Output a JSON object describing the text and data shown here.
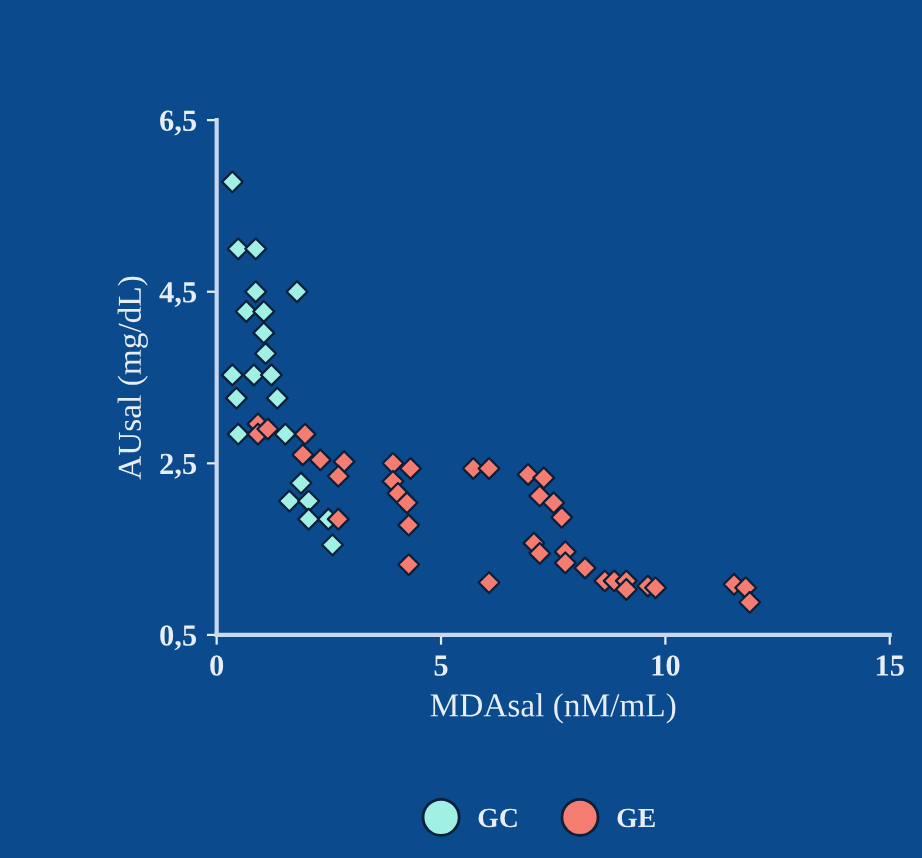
{
  "chart_data": {
    "type": "scatter",
    "xlabel": "MDAsal (nM/mL)",
    "ylabel": "AUsal (mg/dL)",
    "xlim": [
      0,
      15
    ],
    "ylim": [
      0.5,
      6.5
    ],
    "xticks": [
      0,
      5,
      10,
      15
    ],
    "yticks": [
      {
        "value": 0.5,
        "label": "0,5"
      },
      {
        "value": 2.5,
        "label": "2,5"
      },
      {
        "value": 4.5,
        "label": "4,5"
      },
      {
        "value": 6.5,
        "label": "6,5"
      }
    ],
    "marker": "diamond",
    "legend": "bottom",
    "grid": false,
    "series": [
      {
        "name": "GC",
        "color": "#a0f0e4",
        "x": [
          0.35,
          0.48,
          0.87,
          0.87,
          1.79,
          0.66,
          1.05,
          1.05,
          1.09,
          0.35,
          0.83,
          1.22,
          0.44,
          1.35,
          0.48,
          1.53,
          1.88,
          1.62,
          2.05,
          2.05,
          2.49,
          2.58
        ],
        "values": [
          5.78,
          5.0,
          5.0,
          4.5,
          4.5,
          4.27,
          4.27,
          4.02,
          3.78,
          3.53,
          3.53,
          3.53,
          3.26,
          3.26,
          2.84,
          2.84,
          2.27,
          2.06,
          2.06,
          1.85,
          1.85,
          1.55
        ]
      },
      {
        "name": "GE",
        "color": "#f47c70",
        "x": [
          0.92,
          0.92,
          1.14,
          1.97,
          1.92,
          2.31,
          2.84,
          2.71,
          2.71,
          3.93,
          4.32,
          3.93,
          4.04,
          4.24,
          4.28,
          4.28,
          5.72,
          6.07,
          6.07,
          6.94,
          7.29,
          7.2,
          7.51,
          7.69,
          7.07,
          7.2,
          7.77,
          7.77,
          8.21,
          8.65,
          8.86,
          9.13,
          9.13,
          9.61,
          9.78,
          11.53,
          11.79,
          11.88
        ],
        "values": [
          2.96,
          2.84,
          2.9,
          2.84,
          2.6,
          2.54,
          2.52,
          2.35,
          1.85,
          2.5,
          2.44,
          2.29,
          2.15,
          2.04,
          1.78,
          1.32,
          2.44,
          2.44,
          1.11,
          2.37,
          2.33,
          2.12,
          2.04,
          1.87,
          1.57,
          1.45,
          1.47,
          1.34,
          1.28,
          1.13,
          1.13,
          1.13,
          1.03,
          1.07,
          1.05,
          1.09,
          1.05,
          0.88
        ]
      }
    ]
  }
}
